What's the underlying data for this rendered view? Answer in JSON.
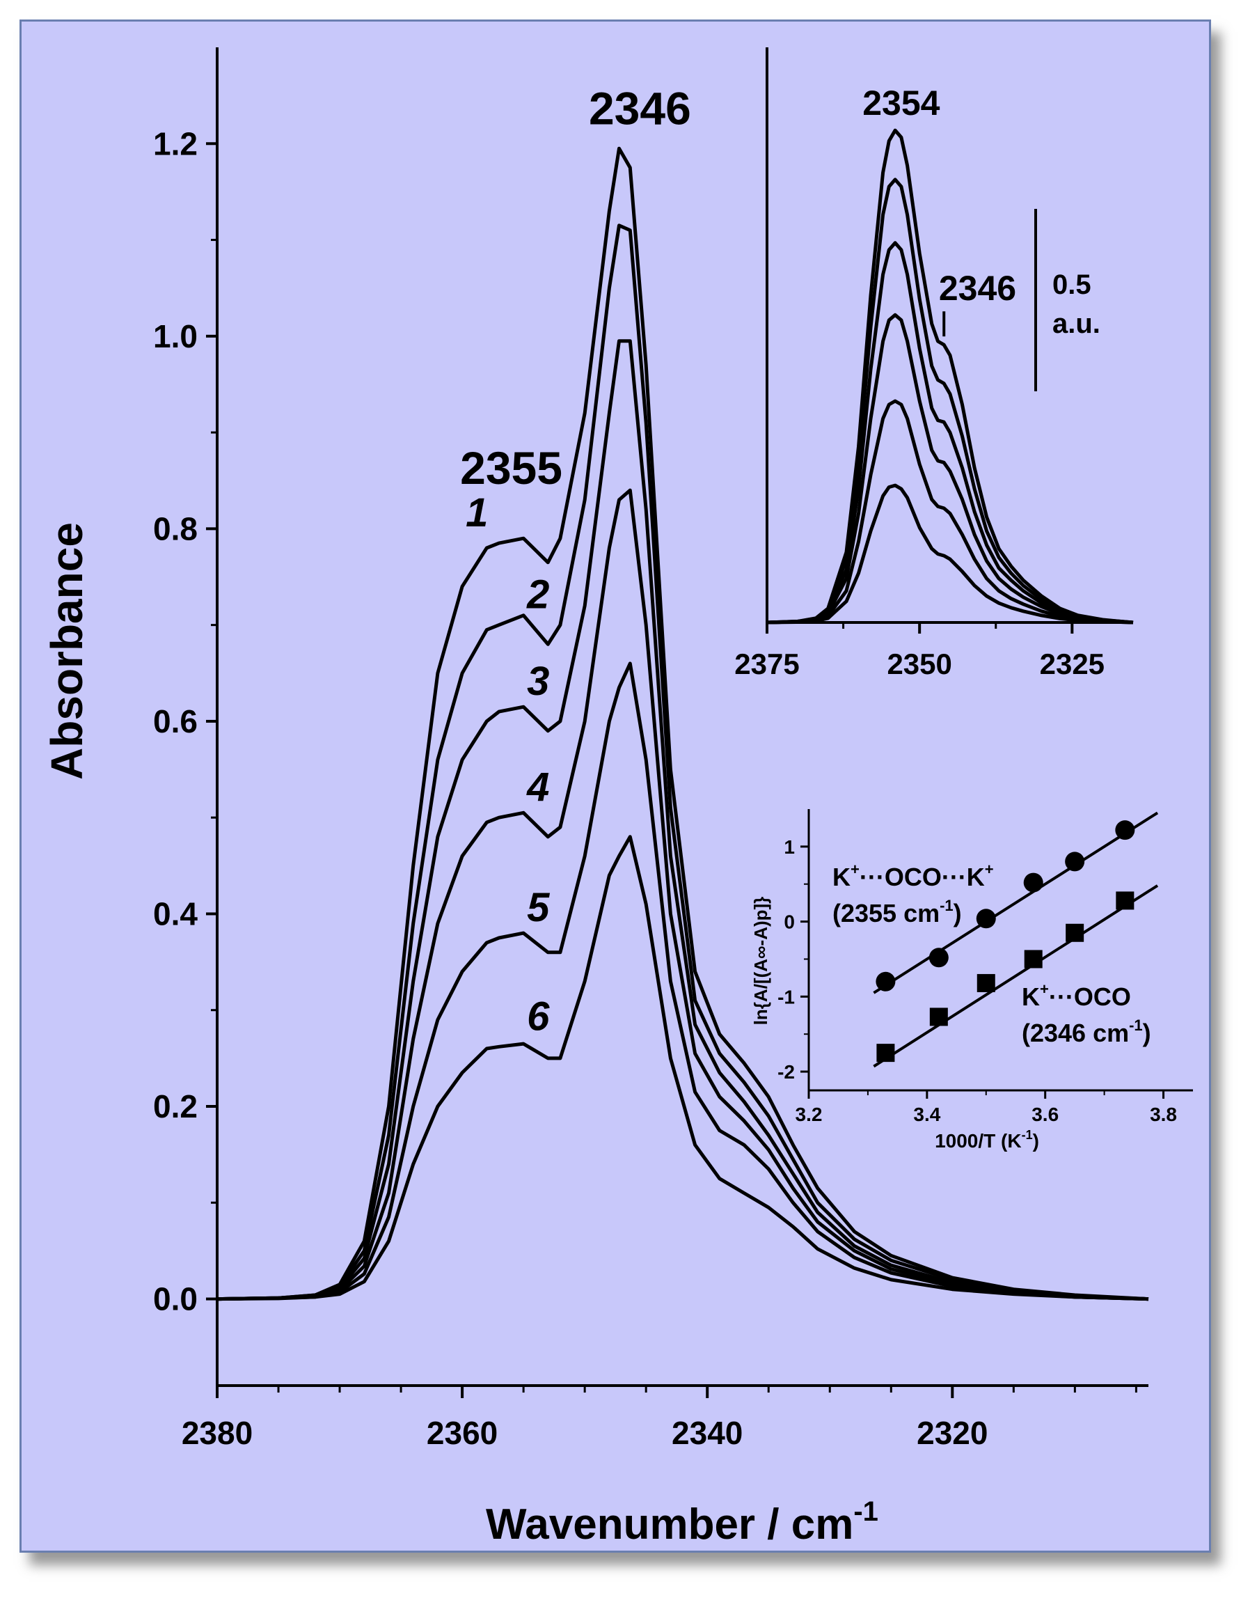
{
  "chart_data": [
    {
      "id": "main",
      "type": "line",
      "title": "",
      "xlabel": "Wavenumber / cm",
      "xlabel_sup": "-1",
      "ylabel": "Absorbance",
      "xlim": [
        2380,
        2304
      ],
      "ylim": [
        -0.09,
        1.3
      ],
      "xticks": [
        2380,
        2360,
        2340,
        2320
      ],
      "xtick_labels": [
        "2380",
        "2360",
        "2340",
        "2320"
      ],
      "yticks": [
        0.0,
        0.2,
        0.4,
        0.6,
        0.8,
        1.0,
        1.2
      ],
      "ytick_labels": [
        "0.0",
        "0.2",
        "0.4",
        "0.6",
        "0.8",
        "1.0",
        "1.2"
      ],
      "x": [
        2380,
        2375,
        2372,
        2370,
        2368,
        2366,
        2364,
        2362,
        2360,
        2358,
        2357,
        2355,
        2353,
        2352,
        2350,
        2348,
        2347.2,
        2346.3,
        2345,
        2343,
        2341,
        2339,
        2337,
        2335,
        2333,
        2331,
        2328,
        2325,
        2320,
        2315,
        2310,
        2304
      ],
      "series": [
        {
          "name": "1",
          "label": "1",
          "values": [
            0,
            0.001,
            0.004,
            0.015,
            0.06,
            0.2,
            0.45,
            0.65,
            0.74,
            0.78,
            0.785,
            0.79,
            0.765,
            0.79,
            0.92,
            1.13,
            1.195,
            1.175,
            0.97,
            0.55,
            0.34,
            0.275,
            0.245,
            0.21,
            0.16,
            0.115,
            0.07,
            0.045,
            0.022,
            0.01,
            0.004,
            0.0
          ]
        },
        {
          "name": "2",
          "label": "2",
          "values": [
            0,
            0.001,
            0.004,
            0.013,
            0.05,
            0.17,
            0.39,
            0.56,
            0.65,
            0.695,
            0.7,
            0.71,
            0.68,
            0.7,
            0.83,
            1.05,
            1.115,
            1.11,
            0.91,
            0.51,
            0.31,
            0.255,
            0.225,
            0.19,
            0.145,
            0.1,
            0.062,
            0.04,
            0.02,
            0.009,
            0.003,
            0.0
          ]
        },
        {
          "name": "3",
          "label": "3",
          "values": [
            0,
            0.001,
            0.003,
            0.011,
            0.042,
            0.14,
            0.33,
            0.48,
            0.56,
            0.6,
            0.61,
            0.615,
            0.59,
            0.6,
            0.72,
            0.92,
            0.995,
            0.995,
            0.82,
            0.46,
            0.285,
            0.235,
            0.205,
            0.17,
            0.13,
            0.09,
            0.055,
            0.035,
            0.017,
            0.008,
            0.003,
            0.0
          ]
        },
        {
          "name": "4",
          "label": "4",
          "values": [
            0,
            0.001,
            0.003,
            0.009,
            0.034,
            0.11,
            0.27,
            0.39,
            0.46,
            0.495,
            0.5,
            0.505,
            0.48,
            0.49,
            0.6,
            0.78,
            0.83,
            0.84,
            0.7,
            0.4,
            0.255,
            0.21,
            0.185,
            0.155,
            0.115,
            0.08,
            0.05,
            0.031,
            0.015,
            0.007,
            0.002,
            0.0
          ]
        },
        {
          "name": "5",
          "label": "5",
          "values": [
            0,
            0.0008,
            0.002,
            0.007,
            0.026,
            0.085,
            0.2,
            0.29,
            0.34,
            0.37,
            0.375,
            0.38,
            0.36,
            0.36,
            0.46,
            0.6,
            0.635,
            0.66,
            0.56,
            0.33,
            0.215,
            0.175,
            0.16,
            0.135,
            0.1,
            0.07,
            0.043,
            0.027,
            0.013,
            0.006,
            0.002,
            0.0
          ]
        },
        {
          "name": "6",
          "label": "6",
          "values": [
            0,
            0.0005,
            0.002,
            0.005,
            0.018,
            0.06,
            0.14,
            0.2,
            0.235,
            0.26,
            0.262,
            0.265,
            0.25,
            0.25,
            0.33,
            0.44,
            0.46,
            0.48,
            0.41,
            0.25,
            0.16,
            0.125,
            0.11,
            0.095,
            0.075,
            0.052,
            0.032,
            0.02,
            0.01,
            0.005,
            0.002,
            0.0
          ]
        }
      ],
      "annotations": [
        {
          "text": "2346",
          "x": 2346
        },
        {
          "text": "2355",
          "x": 2355
        }
      ]
    },
    {
      "id": "inset-top",
      "type": "line",
      "title": "",
      "xlim": [
        2375,
        2315
      ],
      "xticks": [
        2375,
        2350,
        2325
      ],
      "xtick_labels": [
        "2375",
        "2350",
        "2325"
      ],
      "ylim": [
        0,
        1.45
      ],
      "x": [
        2375,
        2370,
        2367,
        2365,
        2362,
        2360,
        2358,
        2356,
        2355,
        2354,
        2353,
        2352,
        2350,
        2348,
        2347,
        2346,
        2345,
        2343,
        2341,
        2339,
        2337,
        2335,
        2333,
        2330,
        2327,
        2324,
        2320,
        2317,
        2315
      ],
      "series": [
        {
          "name": "1",
          "values": [
            0,
            0.003,
            0.012,
            0.04,
            0.2,
            0.5,
            0.93,
            1.28,
            1.37,
            1.4,
            1.38,
            1.3,
            1.05,
            0.85,
            0.8,
            0.79,
            0.76,
            0.62,
            0.44,
            0.3,
            0.21,
            0.16,
            0.12,
            0.075,
            0.04,
            0.02,
            0.008,
            0.003,
            0
          ]
        },
        {
          "name": "2",
          "values": [
            0,
            0.003,
            0.01,
            0.035,
            0.18,
            0.45,
            0.84,
            1.16,
            1.24,
            1.26,
            1.24,
            1.16,
            0.92,
            0.73,
            0.69,
            0.68,
            0.65,
            0.53,
            0.38,
            0.26,
            0.185,
            0.14,
            0.105,
            0.065,
            0.035,
            0.018,
            0.007,
            0.003,
            0
          ]
        },
        {
          "name": "3",
          "values": [
            0,
            0.002,
            0.009,
            0.03,
            0.15,
            0.38,
            0.72,
            0.99,
            1.06,
            1.08,
            1.06,
            0.99,
            0.78,
            0.61,
            0.575,
            0.57,
            0.54,
            0.44,
            0.315,
            0.22,
            0.155,
            0.12,
            0.09,
            0.055,
            0.03,
            0.015,
            0.006,
            0.002,
            0
          ]
        },
        {
          "name": "4",
          "values": [
            0,
            0.002,
            0.008,
            0.025,
            0.125,
            0.31,
            0.58,
            0.8,
            0.86,
            0.875,
            0.86,
            0.8,
            0.63,
            0.49,
            0.46,
            0.455,
            0.43,
            0.35,
            0.25,
            0.175,
            0.125,
            0.095,
            0.072,
            0.045,
            0.025,
            0.012,
            0.005,
            0.002,
            0
          ]
        },
        {
          "name": "5",
          "values": [
            0,
            0.002,
            0.006,
            0.018,
            0.09,
            0.23,
            0.42,
            0.58,
            0.62,
            0.63,
            0.62,
            0.58,
            0.45,
            0.35,
            0.33,
            0.325,
            0.31,
            0.25,
            0.18,
            0.125,
            0.09,
            0.068,
            0.052,
            0.032,
            0.018,
            0.009,
            0.004,
            0.001,
            0
          ]
        },
        {
          "name": "6",
          "values": [
            0,
            0.001,
            0.004,
            0.012,
            0.06,
            0.14,
            0.26,
            0.36,
            0.385,
            0.39,
            0.38,
            0.355,
            0.27,
            0.21,
            0.195,
            0.19,
            0.18,
            0.145,
            0.105,
            0.075,
            0.055,
            0.042,
            0.032,
            0.02,
            0.011,
            0.006,
            0.002,
            0.001,
            0
          ]
        }
      ],
      "annotations": [
        {
          "text": "2354",
          "x": 2354
        },
        {
          "text": "2346",
          "x": 2346
        }
      ],
      "scale_bar": {
        "value": 0.5,
        "label_value": "0.5",
        "label_unit": "a.u."
      }
    },
    {
      "id": "inset-arrhenius",
      "type": "scatter",
      "xlabel": "1000/T (K",
      "xlabel_sup": "-1",
      "xlabel_end": ")",
      "ylabel": "ln{A/[(A∞-A)p]}",
      "xlim": [
        3.2,
        3.85
      ],
      "ylim": [
        -2.25,
        1.5
      ],
      "xticks": [
        3.2,
        3.4,
        3.6,
        3.8
      ],
      "xtick_labels": [
        "3.2",
        "3.4",
        "3.6",
        "3.8"
      ],
      "yticks": [
        -2,
        -1,
        0,
        1
      ],
      "ytick_labels": [
        "-2",
        "-1",
        "0",
        "1"
      ],
      "series": [
        {
          "name": "K⁺···OCO···K⁺ (2355 cm⁻¹)",
          "marker": "circle",
          "x": [
            3.33,
            3.42,
            3.5,
            3.58,
            3.65,
            3.735
          ],
          "y": [
            -0.8,
            -0.48,
            0.04,
            0.52,
            0.8,
            1.22
          ],
          "fit_x": [
            3.31,
            3.79
          ],
          "fit_y": [
            -0.95,
            1.45
          ]
        },
        {
          "name": "K⁺···OCO (2346 cm⁻¹)",
          "marker": "square",
          "x": [
            3.33,
            3.42,
            3.5,
            3.58,
            3.65,
            3.735
          ],
          "y": [
            -1.75,
            -1.27,
            -0.82,
            -0.5,
            -0.15,
            0.28
          ],
          "fit_x": [
            3.31,
            3.79
          ],
          "fit_y": [
            -1.93,
            0.48
          ]
        }
      ],
      "annotations": {
        "upper_line1_a": "K",
        "upper_line1_b": "+",
        "upper_line1_c": "···OCO···K",
        "upper_line1_d": "+",
        "upper_line2": "(2355 cm",
        "upper_line2_sup": "-1",
        "upper_line2_end": ")",
        "lower_line1_a": "K",
        "lower_line1_b": "+",
        "lower_line1_c": "···OCO",
        "lower_line2": "(2346 cm",
        "lower_line2_sup": "-1",
        "lower_line2_end": ")"
      }
    }
  ]
}
